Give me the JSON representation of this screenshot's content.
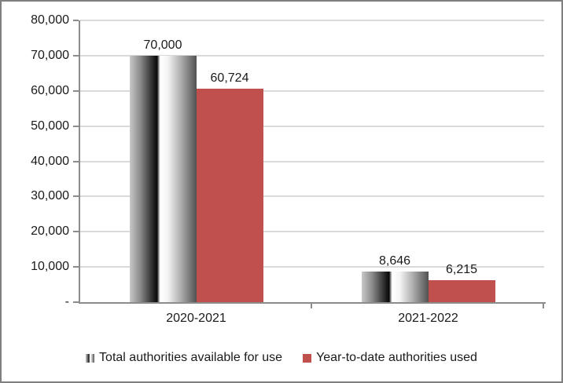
{
  "chart_data": {
    "type": "bar",
    "title": "",
    "xlabel": "",
    "ylabel": "",
    "categories": [
      "2020-2021",
      "2021-2022"
    ],
    "series": [
      {
        "name": "Total authorities available for use",
        "values": [
          70000,
          8646
        ],
        "labels": [
          "70,000",
          "8,646"
        ],
        "style": "gray-gradient"
      },
      {
        "name": "Year-to-date authorities used",
        "values": [
          60724,
          6215
        ],
        "labels": [
          "60,724",
          "6,215"
        ],
        "style": "solid-red"
      }
    ],
    "ylim": [
      0,
      80000
    ],
    "ytick_interval": 10000,
    "yticks": [
      {
        "value": 0,
        "label": "-"
      },
      {
        "value": 10000,
        "label": "10,000"
      },
      {
        "value": 20000,
        "label": "20,000"
      },
      {
        "value": 30000,
        "label": "30,000"
      },
      {
        "value": 40000,
        "label": "40,000"
      },
      {
        "value": 50000,
        "label": "50,000"
      },
      {
        "value": 60000,
        "label": "60,000"
      },
      {
        "value": 70000,
        "label": "70,000"
      },
      {
        "value": 80000,
        "label": "80,000"
      }
    ],
    "grid": true,
    "legend_position": "bottom",
    "colors": {
      "series_red": "#C0504D",
      "gray_dark": "#0A0A0A",
      "gray_light": "#FFFFFF",
      "gridline": "#D9D9D9",
      "axis": "#8C8C8C",
      "text": "#1A1A1A",
      "border": "#7F7F7F",
      "background": "#FFFFFF"
    }
  }
}
